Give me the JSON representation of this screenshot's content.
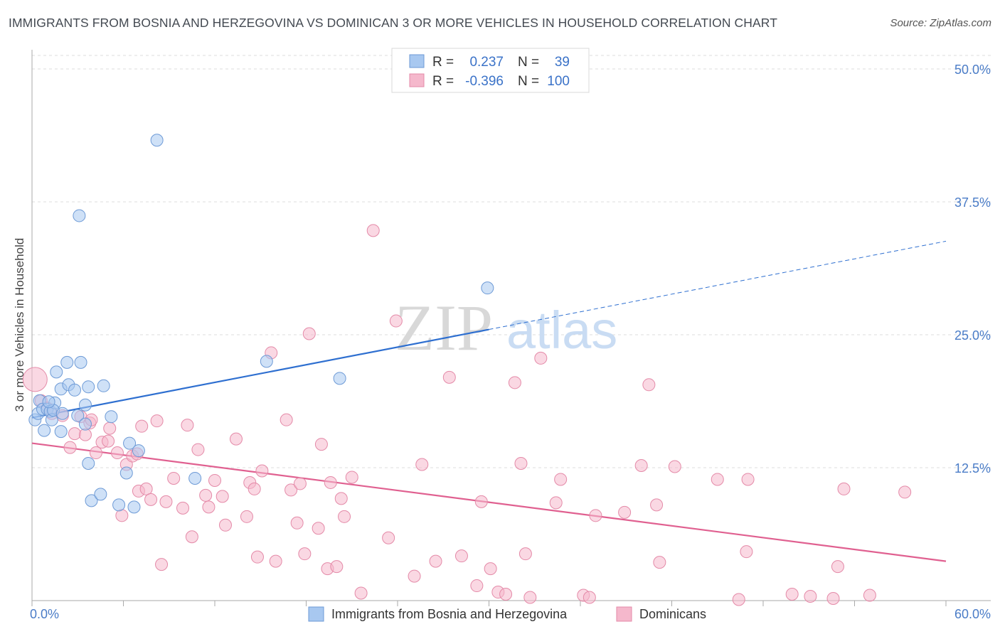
{
  "title": "IMMIGRANTS FROM BOSNIA AND HERZEGOVINA VS DOMINICAN 3 OR MORE VEHICLES IN HOUSEHOLD CORRELATION CHART",
  "source": "Source: ZipAtlas.com",
  "watermark": {
    "zip": "ZIP",
    "atlas": "atlas"
  },
  "colors": {
    "blue_fill": "#a8c8f0",
    "blue_stroke": "#6d9ad6",
    "blue_line": "#2e6fd0",
    "pink_fill": "#f5b8cc",
    "pink_stroke": "#e48aa8",
    "pink_line": "#e06090",
    "tick_label": "#4a7cc7",
    "grid": "#dcdcdc"
  },
  "chart_data": {
    "type": "scatter",
    "title": "IMMIGRANTS FROM BOSNIA AND HERZEGOVINA VS DOMINICAN 3 OR MORE VEHICLES IN HOUSEHOLD CORRELATION CHART",
    "xlabel": "",
    "ylabel": "3 or more Vehicles in Household",
    "xlim": [
      0,
      60
    ],
    "ylim": [
      0,
      52
    ],
    "x_tick_labels": [
      "0.0%",
      "60.0%"
    ],
    "y_ticks": [
      12.5,
      25.0,
      37.5,
      50.0
    ],
    "y_tick_labels": [
      "12.5%",
      "25.0%",
      "37.5%",
      "50.0%"
    ],
    "grid": true,
    "legend_position": "top-center",
    "legend": [
      {
        "r_label": "R =",
        "r_value": "0.237",
        "n_label": "N =",
        "n_value": "39"
      },
      {
        "r_label": "R =",
        "r_value": "-0.396",
        "n_label": "N =",
        "n_value": "100"
      }
    ],
    "series": [
      {
        "name": "Immigrants from Bosnia and Herzegovina",
        "color": "#a8c8f0",
        "trend": {
          "x": [
            0,
            30
          ],
          "y": [
            17.2,
            25.5
          ],
          "extended_to": [
            60,
            33.8
          ]
        },
        "points": [
          [
            0.2,
            17.0
          ],
          [
            0.4,
            17.6
          ],
          [
            0.5,
            18.8
          ],
          [
            0.7,
            18.0
          ],
          [
            0.8,
            16.0
          ],
          [
            1.0,
            18.0
          ],
          [
            1.2,
            17.8
          ],
          [
            1.3,
            17.0
          ],
          [
            1.5,
            18.6
          ],
          [
            1.6,
            21.5
          ],
          [
            1.9,
            19.9
          ],
          [
            1.9,
            15.9
          ],
          [
            2.3,
            22.4
          ],
          [
            2.4,
            20.3
          ],
          [
            2.8,
            19.8
          ],
          [
            3.2,
            22.4
          ],
          [
            3.5,
            18.4
          ],
          [
            3.7,
            20.1
          ],
          [
            3.0,
            17.4
          ],
          [
            3.5,
            16.6
          ],
          [
            3.7,
            12.9
          ],
          [
            3.9,
            9.4
          ],
          [
            4.5,
            10.0
          ],
          [
            4.7,
            20.2
          ],
          [
            5.2,
            17.3
          ],
          [
            5.7,
            9.0
          ],
          [
            6.2,
            12.0
          ],
          [
            6.4,
            14.8
          ],
          [
            6.7,
            8.8
          ],
          [
            7.0,
            14.1
          ],
          [
            8.2,
            43.3
          ],
          [
            3.1,
            36.2
          ],
          [
            10.7,
            11.5
          ],
          [
            15.4,
            22.5
          ],
          [
            20.2,
            20.9
          ],
          [
            29.9,
            29.4
          ],
          [
            1.4,
            17.9
          ],
          [
            2.0,
            17.6
          ],
          [
            1.1,
            18.7
          ]
        ]
      },
      {
        "name": "Dominicans",
        "color": "#f5b8cc",
        "trend": {
          "x": [
            0,
            60
          ],
          "y": [
            14.8,
            3.7
          ]
        },
        "points": [
          [
            0.2,
            20.8
          ],
          [
            0.6,
            18.8
          ],
          [
            1.0,
            18.1
          ],
          [
            1.3,
            17.6
          ],
          [
            2.0,
            17.4
          ],
          [
            2.5,
            14.4
          ],
          [
            2.8,
            15.7
          ],
          [
            3.2,
            17.3
          ],
          [
            3.5,
            15.6
          ],
          [
            3.8,
            16.7
          ],
          [
            3.9,
            17.0
          ],
          [
            4.2,
            13.9
          ],
          [
            4.6,
            14.9
          ],
          [
            5.0,
            15.0
          ],
          [
            5.1,
            16.2
          ],
          [
            5.6,
            13.9
          ],
          [
            5.9,
            8.0
          ],
          [
            6.2,
            12.8
          ],
          [
            6.6,
            13.6
          ],
          [
            6.9,
            13.8
          ],
          [
            7.0,
            10.3
          ],
          [
            7.2,
            16.4
          ],
          [
            7.5,
            10.5
          ],
          [
            7.8,
            9.5
          ],
          [
            8.2,
            16.9
          ],
          [
            8.5,
            3.4
          ],
          [
            8.8,
            9.3
          ],
          [
            9.3,
            11.5
          ],
          [
            9.9,
            8.7
          ],
          [
            10.2,
            16.5
          ],
          [
            10.5,
            6.0
          ],
          [
            10.9,
            14.2
          ],
          [
            11.4,
            9.9
          ],
          [
            11.6,
            8.8
          ],
          [
            12.5,
            9.8
          ],
          [
            12.7,
            7.1
          ],
          [
            12.0,
            11.3
          ],
          [
            13.4,
            15.2
          ],
          [
            14.1,
            7.9
          ],
          [
            14.3,
            11.1
          ],
          [
            14.6,
            10.5
          ],
          [
            14.8,
            4.1
          ],
          [
            15.1,
            12.2
          ],
          [
            15.7,
            23.3
          ],
          [
            16.0,
            3.7
          ],
          [
            16.7,
            17.0
          ],
          [
            17.0,
            10.4
          ],
          [
            17.4,
            7.3
          ],
          [
            17.6,
            11.0
          ],
          [
            17.9,
            4.4
          ],
          [
            18.2,
            25.1
          ],
          [
            18.8,
            6.8
          ],
          [
            19.0,
            14.7
          ],
          [
            19.4,
            3.0
          ],
          [
            19.6,
            11.1
          ],
          [
            20.0,
            3.2
          ],
          [
            20.3,
            9.6
          ],
          [
            20.5,
            7.9
          ],
          [
            21.0,
            11.6
          ],
          [
            21.6,
            0.7
          ],
          [
            22.4,
            34.8
          ],
          [
            23.4,
            5.9
          ],
          [
            23.9,
            26.3
          ],
          [
            25.1,
            2.3
          ],
          [
            25.6,
            12.8
          ],
          [
            26.5,
            3.7
          ],
          [
            27.4,
            21.0
          ],
          [
            28.2,
            4.2
          ],
          [
            29.2,
            1.4
          ],
          [
            29.5,
            9.3
          ],
          [
            30.1,
            3.0
          ],
          [
            30.6,
            0.8
          ],
          [
            31.1,
            0.6
          ],
          [
            31.7,
            20.5
          ],
          [
            32.1,
            12.9
          ],
          [
            32.4,
            4.4
          ],
          [
            32.7,
            0.3
          ],
          [
            33.4,
            22.8
          ],
          [
            34.4,
            9.2
          ],
          [
            34.7,
            11.4
          ],
          [
            36.2,
            0.5
          ],
          [
            36.6,
            0.3
          ],
          [
            37.0,
            8.0
          ],
          [
            38.9,
            8.3
          ],
          [
            40.0,
            12.7
          ],
          [
            40.5,
            20.3
          ],
          [
            41.0,
            9.0
          ],
          [
            41.2,
            3.6
          ],
          [
            42.2,
            12.6
          ],
          [
            45.0,
            11.4
          ],
          [
            46.4,
            0.1
          ],
          [
            46.9,
            4.6
          ],
          [
            47.0,
            11.4
          ],
          [
            49.9,
            0.6
          ],
          [
            51.1,
            0.4
          ],
          [
            52.6,
            0.2
          ],
          [
            52.9,
            3.2
          ],
          [
            53.3,
            10.5
          ],
          [
            57.3,
            10.2
          ],
          [
            55.0,
            0.5
          ]
        ]
      }
    ]
  }
}
